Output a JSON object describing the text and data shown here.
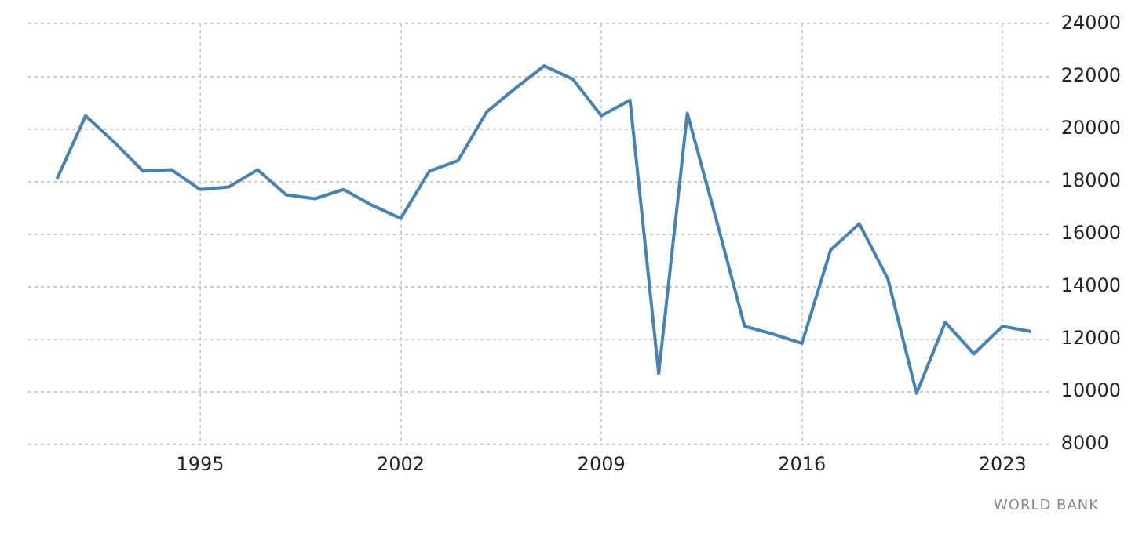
{
  "chart_data": {
    "type": "line",
    "x": [
      1990,
      1991,
      1992,
      1993,
      1994,
      1995,
      1996,
      1997,
      1998,
      1999,
      2000,
      2001,
      2002,
      2003,
      2004,
      2005,
      2006,
      2007,
      2008,
      2009,
      2010,
      2011,
      2012,
      2013,
      2014,
      2015,
      2016,
      2017,
      2018,
      2019,
      2020,
      2021,
      2022,
      2023,
      2024
    ],
    "series": [
      {
        "color": "#4682b4",
        "values": [
          18100,
          20500,
          19500,
          18400,
          18450,
          17700,
          17800,
          18450,
          17500,
          17350,
          17700,
          17100,
          16600,
          18400,
          18800,
          20650,
          21550,
          22400,
          21900,
          20500,
          21100,
          10700,
          20600,
          16600,
          12500,
          12200,
          11850,
          15400,
          16400,
          14300,
          9950,
          12650,
          11450,
          12500,
          12300
        ]
      }
    ],
    "xlim": [
      1989,
      2024.6
    ],
    "xticks": [
      1995,
      2002,
      2009,
      2016,
      2023
    ],
    "ylim": [
      8000,
      24000
    ],
    "yticks": [
      8000,
      10000,
      12000,
      14000,
      16000,
      18000,
      20000,
      22000,
      24000
    ],
    "grid": true,
    "legend": false,
    "marker": "none",
    "line_style": "solid",
    "annotations": [
      "WORLD BANK"
    ]
  }
}
